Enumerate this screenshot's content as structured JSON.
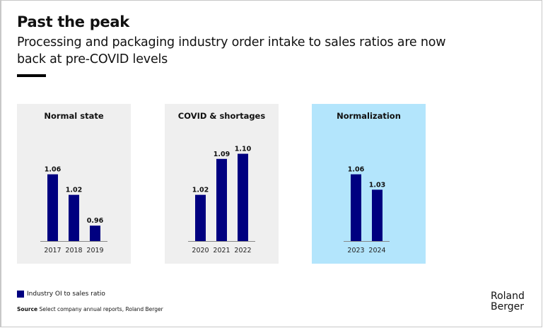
{
  "header": {
    "title": "Past the peak",
    "subtitle": "Processing and packaging industry order intake to sales ratios are now back at pre-COVID levels"
  },
  "chart_data": {
    "type": "bar",
    "title": "Past the peak",
    "xlabel": "",
    "ylabel": "",
    "series_name": "Industry OI to sales ratio",
    "bar_color": "#000080",
    "ylim": [
      0.93,
      1.12
    ],
    "panels": [
      {
        "title": "Normal state",
        "highlight": false,
        "categories": [
          "2017",
          "2018",
          "2019"
        ],
        "values": [
          1.06,
          1.02,
          0.96
        ],
        "labels": [
          "1.06",
          "1.02",
          "0.96"
        ]
      },
      {
        "title": "COVID & shortages",
        "highlight": false,
        "categories": [
          "2020",
          "2021",
          "2022"
        ],
        "values": [
          1.02,
          1.09,
          1.1
        ],
        "labels": [
          "1.02",
          "1.09",
          "1.10"
        ]
      },
      {
        "title": "Normalization",
        "highlight": true,
        "categories": [
          "2023",
          "2024"
        ],
        "values": [
          1.06,
          1.03
        ],
        "labels": [
          "1.06",
          "1.03"
        ]
      }
    ],
    "legend": {
      "entries": [
        "Industry OI to sales ratio"
      ],
      "position": "bottom-left"
    },
    "grid": false
  },
  "footer": {
    "legend_label": "Industry OI to sales ratio",
    "source_label": "Source",
    "source_text": " Select company annual reports, Roland Berger",
    "logo_line1": "Roland",
    "logo_line2": "Berger"
  },
  "colors": {
    "bar": "#000080",
    "panel_bg": "#efefef",
    "highlight_bg": "#b3e5fc"
  }
}
